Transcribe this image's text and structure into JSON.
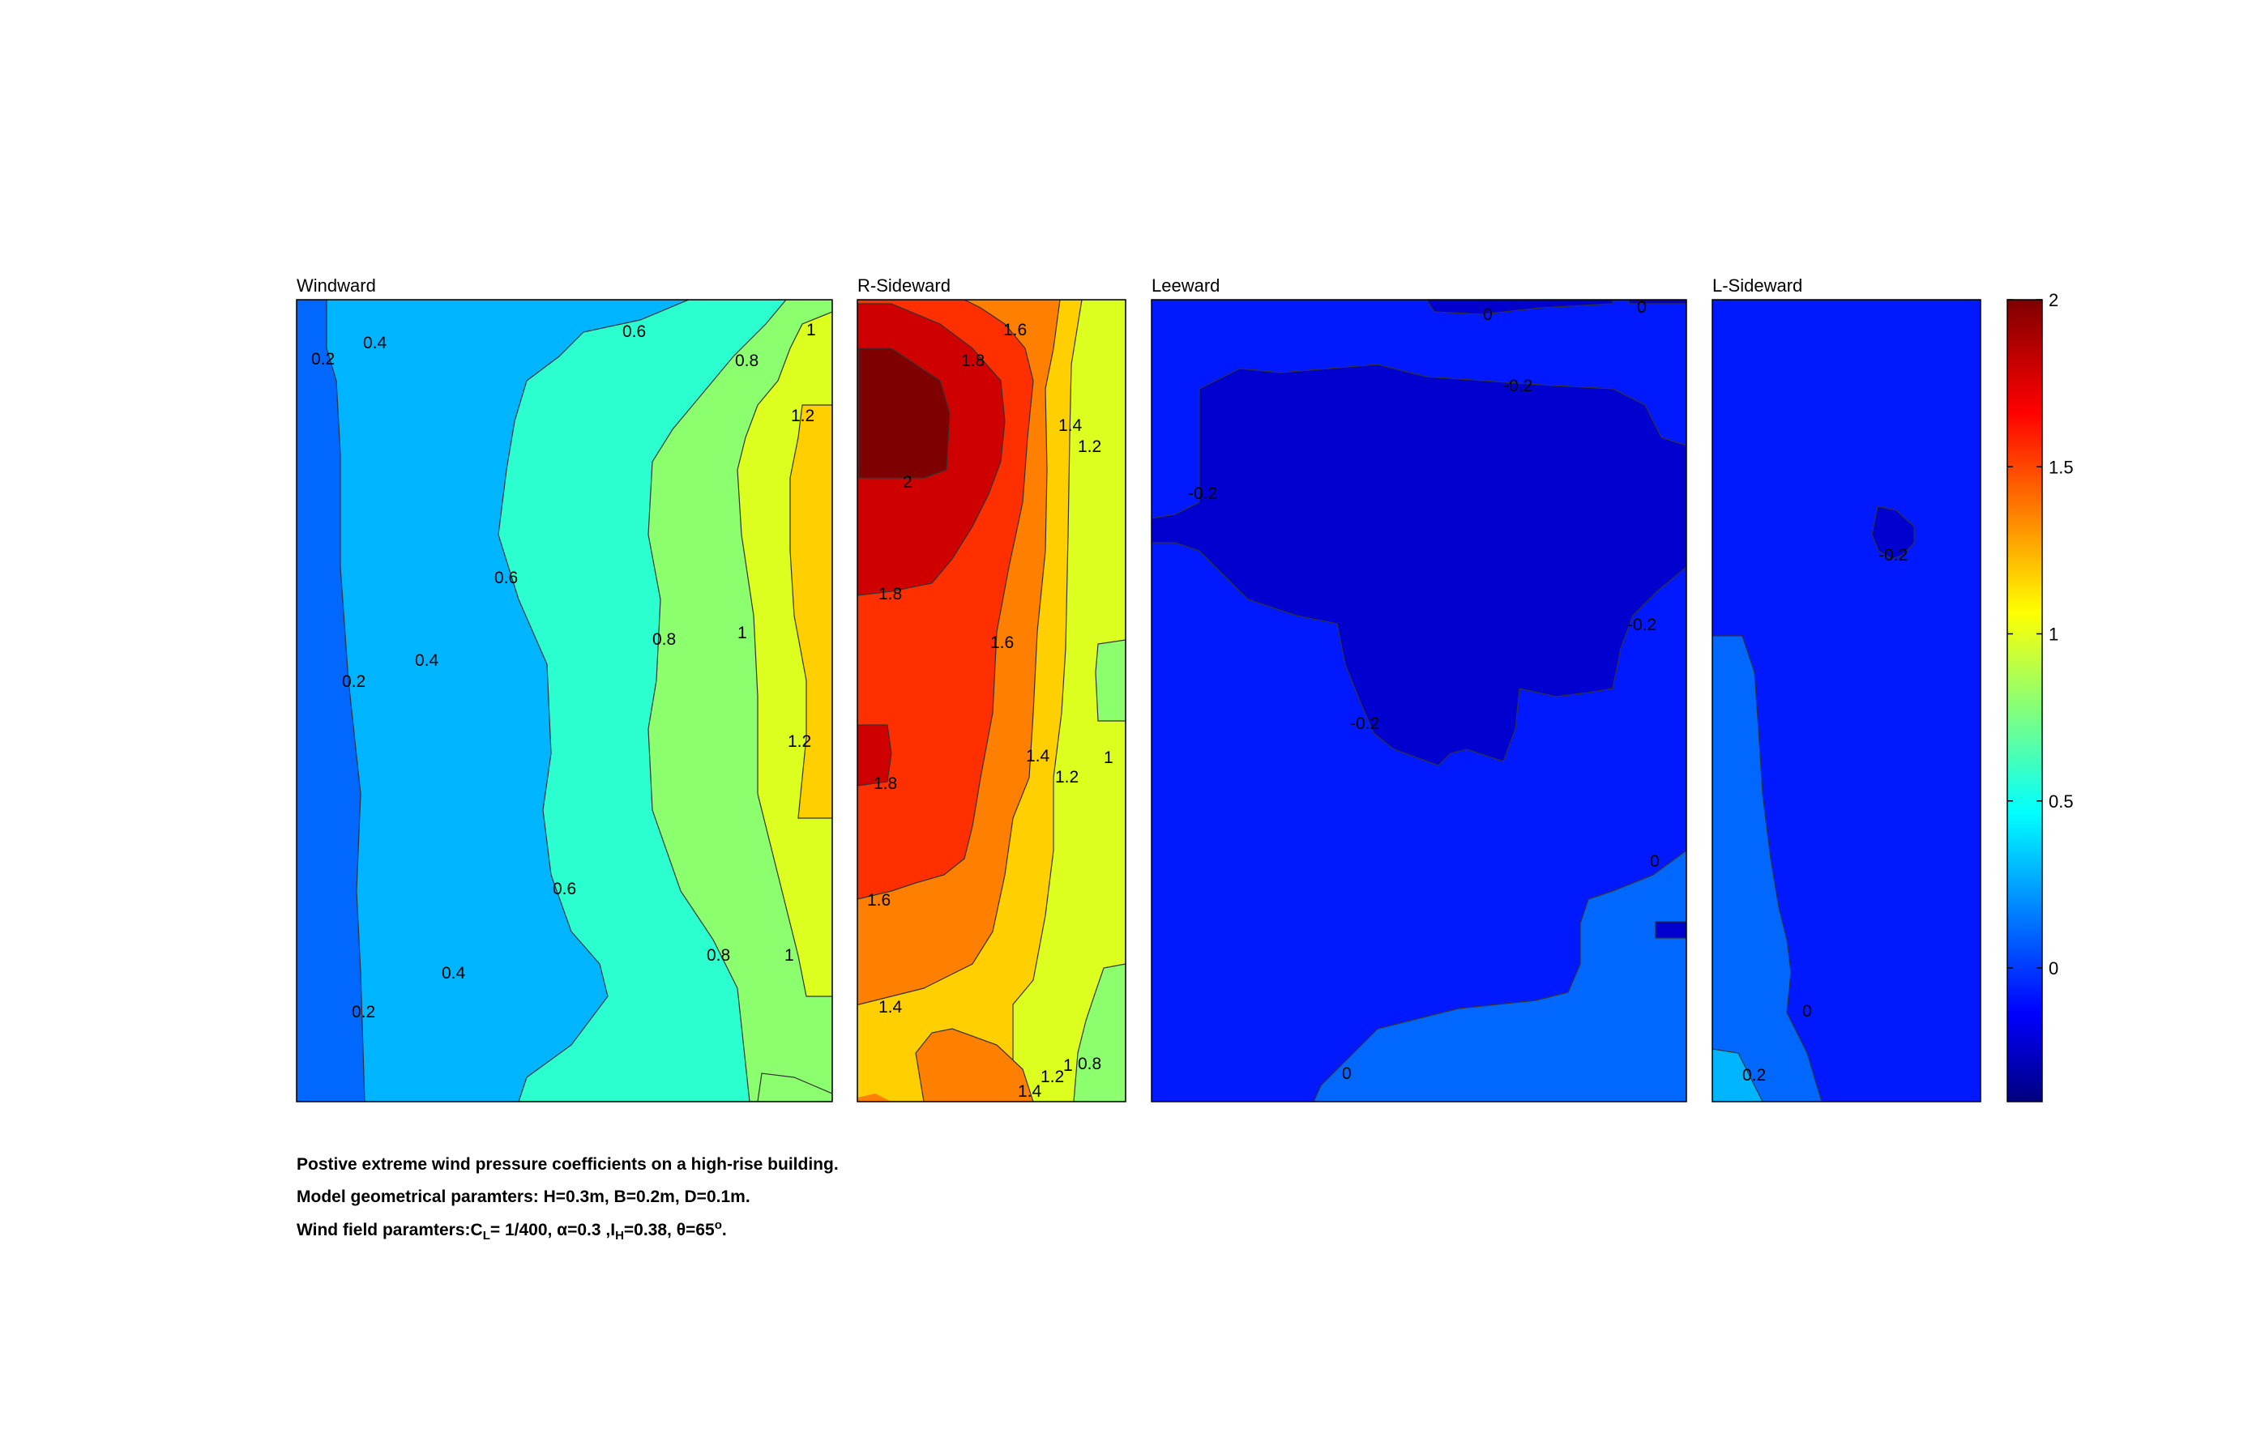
{
  "chart_data": {
    "type": "heatmap",
    "colormap": "jet",
    "clim": [
      -0.4,
      2
    ],
    "colorbar": {
      "ticks": [
        "0",
        "0.5",
        "1",
        "1.5",
        "2"
      ],
      "tick_values": [
        0,
        0.5,
        1,
        1.5,
        2
      ]
    },
    "panels": [
      {
        "title": "Windward",
        "levels": [
          0.2,
          0.4,
          0.6,
          0.8,
          1.0,
          1.2
        ],
        "contour_labels": [
          "0.2",
          "0.4",
          "0.6",
          "0.8",
          "1",
          "1.2",
          "0.6",
          "0.2",
          "0.4",
          "0.8",
          "1",
          "1.2",
          "0.6",
          "0.4",
          "0.8",
          "1",
          "0.2"
        ]
      },
      {
        "title": "R-Sideward",
        "levels": [
          0.8,
          1.0,
          1.2,
          1.4,
          1.6,
          1.8,
          2.0
        ],
        "contour_labels": [
          "1.6",
          "1.8",
          "1.4",
          "1.2",
          "2",
          "1.8",
          "1.6",
          "1.4",
          "1.2",
          "1",
          "1.8",
          "1.6",
          "1.4",
          "1.4",
          "1.2",
          "1",
          "0.8"
        ]
      },
      {
        "title": "Leeward",
        "levels": [
          -0.2,
          0
        ],
        "contour_labels": [
          "0",
          "0",
          "-0.2",
          "-0.2",
          "-0.2",
          "-0.2",
          "0",
          "0"
        ]
      },
      {
        "title": "L-Sideward",
        "levels": [
          -0.2,
          0,
          0.2
        ],
        "contour_labels": [
          "-0.2",
          "0",
          "0.2"
        ]
      }
    ]
  },
  "caption": {
    "line1": "Postive extreme  wind pressure coefficients on a high-rise building.",
    "line2": "Model geometrical paramters: H=0.3m, B=0.2m, D=0.1m.",
    "line3": {
      "prefix": "Wind field paramters:C",
      "sub1": "L",
      "mid1": "= 1/400, α=0.3 ,I",
      "sub2": "H",
      "mid2": "=0.38, θ=65",
      "sup": "o",
      "suffix": "."
    }
  },
  "colors": {
    "c_-0.4": "#00007f",
    "c_-0.2": "#0000cf",
    "c_0": "#0019ff",
    "c_0.2": "#0067ff",
    "c_0.4": "#00b5ff",
    "c_0.6": "#2cffcf",
    "c_0.8": "#8cff6f",
    "c_1.0": "#ddff1f",
    "c_1.2": "#ffcf00",
    "c_1.4": "#ff7f00",
    "c_1.6": "#ff2f00",
    "c_1.8": "#cf0000",
    "c_2.0": "#7f0000"
  }
}
